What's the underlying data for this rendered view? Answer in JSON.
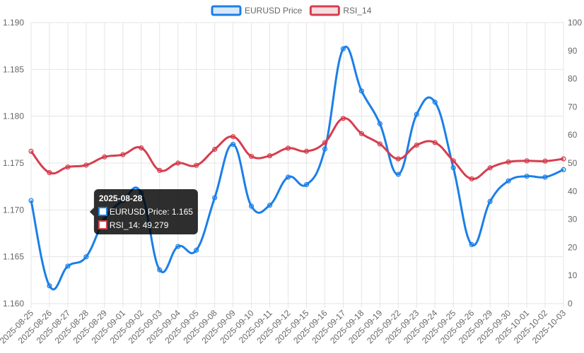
{
  "chart_data": {
    "type": "line",
    "categories": [
      "2025-08-25",
      "2025-08-26",
      "2025-08-27",
      "2025-08-28",
      "2025-08-29",
      "2025-09-01",
      "2025-09-02",
      "2025-09-03",
      "2025-09-04",
      "2025-09-05",
      "2025-09-08",
      "2025-09-09",
      "2025-09-10",
      "2025-09-11",
      "2025-09-12",
      "2025-09-15",
      "2025-09-16",
      "2025-09-17",
      "2025-09-18",
      "2025-09-19",
      "2025-09-22",
      "2025-09-23",
      "2025-09-24",
      "2025-09-25",
      "2025-09-26",
      "2025-09-29",
      "2025-09-30",
      "2025-10-01",
      "2025-10-02",
      "2025-10-03"
    ],
    "series": [
      {
        "name": "EURUSD Price",
        "axis": "left",
        "color": "#1a7fe8",
        "values": [
          1.171,
          1.1619,
          1.164,
          1.165,
          1.169,
          1.171,
          1.1718,
          1.1636,
          1.1661,
          1.1657,
          1.1713,
          1.177,
          1.1704,
          1.1705,
          1.1735,
          1.1727,
          1.1765,
          1.1872,
          1.1827,
          1.1792,
          1.1738,
          1.1802,
          1.1815,
          1.1745,
          1.1663,
          1.1709,
          1.1731,
          1.1736,
          1.1735,
          1.1743
        ]
      },
      {
        "name": "RSI_14",
        "axis": "right",
        "color": "#d63d4e",
        "values": [
          54.2,
          46.6,
          48.6,
          49.279,
          52.2,
          53.0,
          55.4,
          47.4,
          50.0,
          49.2,
          54.9,
          59.4,
          52.4,
          52.6,
          55.3,
          54.2,
          57.3,
          65.9,
          60.5,
          56.8,
          51.5,
          56.4,
          57.3,
          50.8,
          44.4,
          48.3,
          50.4,
          50.8,
          50.7,
          51.5
        ]
      }
    ],
    "yleft": {
      "ylim": [
        1.16,
        1.19
      ],
      "ticks": [
        "1.160",
        "1.165",
        "1.170",
        "1.175",
        "1.180",
        "1.185",
        "1.190"
      ]
    },
    "yright": {
      "ylim": [
        0,
        100
      ],
      "ticks": [
        "0",
        "10",
        "20",
        "30",
        "40",
        "50",
        "60",
        "70",
        "80",
        "90",
        "100"
      ]
    },
    "grid": true,
    "legend_placement": "top-center",
    "tooltip": {
      "title": "2025-08-28",
      "lines": [
        "EURUSD Price: 1.165",
        "RSI_14: 49.279"
      ]
    }
  }
}
